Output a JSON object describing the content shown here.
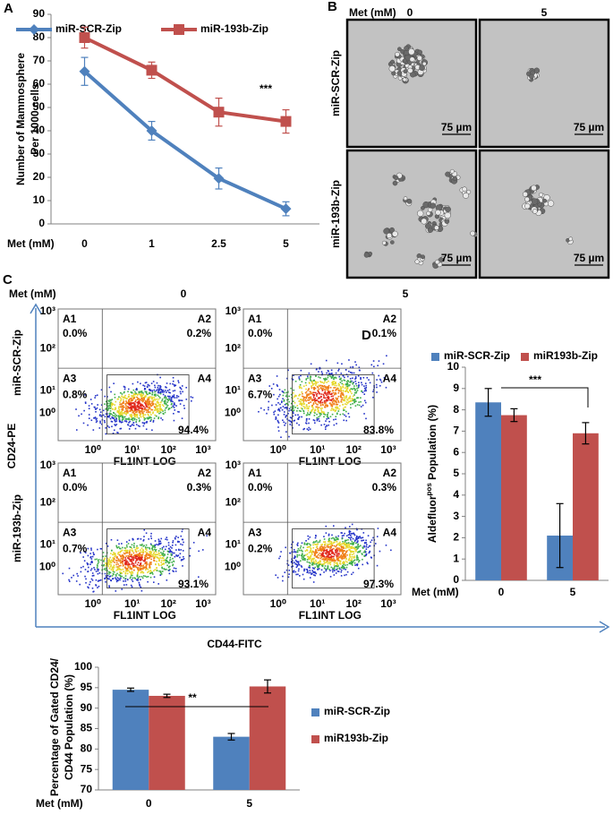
{
  "panel_labels": [
    "A",
    "B",
    "C",
    "D"
  ],
  "chart_data": [
    {
      "type": "line",
      "xlabel": "Met (mM)",
      "ylabel": [
        "Number of Mammosphere",
        "Per 1000 cells"
      ],
      "categories": [
        "0",
        "1",
        "2.5",
        "5"
      ],
      "series": [
        {
          "name": "miR-SCR-Zip",
          "color": "#4f81bd",
          "marker": "diamond",
          "values": [
            65.5,
            40,
            19.5,
            6.5
          ],
          "errors": [
            6,
            4,
            4.5,
            3
          ]
        },
        {
          "name": "miR-193b-Zip",
          "color": "#c0504d",
          "marker": "square",
          "values": [
            80,
            66,
            48,
            44
          ],
          "errors": [
            4.5,
            3.5,
            6,
            5
          ]
        }
      ],
      "ylim": [
        0,
        90
      ],
      "yticks": [
        0,
        10,
        20,
        30,
        40,
        50,
        60,
        70,
        80,
        90
      ],
      "legend": "top",
      "annotation": "***"
    },
    {
      "type": "bar",
      "xlabel": "Met (mM)",
      "ylabel_parts": [
        "Aldefluor",
        "pos",
        " Population (%)"
      ],
      "categories": [
        "0",
        "5"
      ],
      "series": [
        {
          "name": "miR-SCR-Zip",
          "color": "#4f81bd",
          "values": [
            8.35,
            2.1
          ],
          "errors": [
            0.65,
            1.5
          ]
        },
        {
          "name": "miR193b-Zip",
          "color": "#c0504d",
          "values": [
            7.75,
            6.9
          ],
          "errors": [
            0.3,
            0.5
          ]
        }
      ],
      "ylim": [
        0,
        10
      ],
      "yticks": [
        0,
        1,
        2,
        3,
        4,
        5,
        6,
        7,
        8,
        9,
        10
      ],
      "legend": "top",
      "annotation": "***"
    },
    {
      "type": "bar",
      "xlabel": "Met (mM)",
      "ylabel": [
        "Percentage of Gated CD24/",
        "CD44 Population (%)"
      ],
      "categories": [
        "0",
        "5"
      ],
      "series": [
        {
          "name": "miR-SCR-Zip",
          "color": "#4f81bd",
          "values": [
            94.5,
            83
          ],
          "errors": [
            0.4,
            0.8
          ]
        },
        {
          "name": "miR193b-Zip",
          "color": "#c0504d",
          "values": [
            93,
            95.3
          ],
          "errors": [
            0.4,
            1.6
          ]
        }
      ],
      "ylim": [
        70,
        100
      ],
      "yticks": [
        70,
        75,
        80,
        85,
        90,
        95,
        100
      ],
      "legend": "right",
      "annotation": "**"
    }
  ],
  "micrographs": {
    "met_label": "Met (mM)",
    "columns": [
      "0",
      "5"
    ],
    "rows": [
      "miR-SCR-Zip",
      "miR-193b-Zip"
    ],
    "scale_bar": "75 µm"
  },
  "flow_cytometry": {
    "met_label": "Met (mM)",
    "columns": [
      "0",
      "5"
    ],
    "rows": [
      "miR-SCR-Zip",
      "miR-193b-Zip"
    ],
    "y_axis": "CD24-PE",
    "x_axis": "CD44-FITC",
    "plot_x_label": "FL1INT LOG",
    "axis_ticks": [
      "10⁰",
      "10¹",
      "10²",
      "10³"
    ],
    "quadrant_names": [
      "A1",
      "A2",
      "A3",
      "A4"
    ],
    "plots": [
      [
        "0.0%",
        "0.2%",
        "0.8%",
        "94.4%"
      ],
      [
        "0.0%",
        "0.1%",
        "6.7%",
        "83.8%"
      ],
      [
        "0.0%",
        "0.3%",
        "0.7%",
        "93.1%"
      ],
      [
        "0.0%",
        "0.3%",
        "0.2%",
        "97.3%"
      ]
    ]
  }
}
